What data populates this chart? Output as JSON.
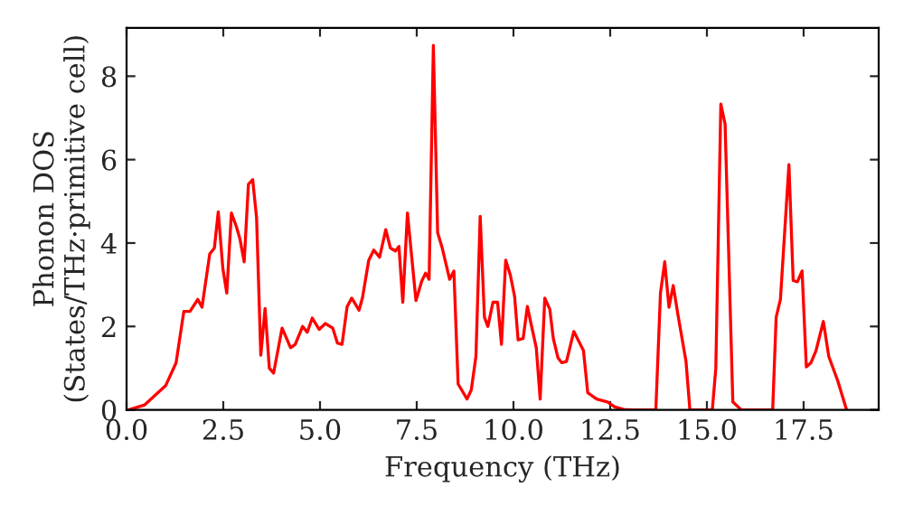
{
  "chart_data": {
    "type": "line",
    "xlabel": "Frequency (THz)",
    "ylabel": "Phonon DOS\n(States/THz·primitive cell)",
    "xlim": [
      0,
      19.44
    ],
    "ylim": [
      0,
      9.16
    ],
    "xticks": [
      {
        "value": 0,
        "label": "0.0"
      },
      {
        "value": 2.5,
        "label": "2.5"
      },
      {
        "value": 5,
        "label": "5.0"
      },
      {
        "value": 7.5,
        "label": "7.5"
      },
      {
        "value": 10,
        "label": "10.0"
      },
      {
        "value": 12.5,
        "label": "12.5"
      },
      {
        "value": 15,
        "label": "15.0"
      },
      {
        "value": 17.5,
        "label": "17.5"
      }
    ],
    "yticks": [
      0,
      2,
      4,
      6,
      8
    ],
    "grid": false,
    "marker": "none",
    "line_style": "solid",
    "series": [
      {
        "color": "#ff0000",
        "x": [
          0.05,
          0.47,
          1.01,
          1.28,
          1.48,
          1.64,
          1.84,
          1.95,
          2.15,
          2.27,
          2.37,
          2.49,
          2.59,
          2.71,
          2.84,
          2.93,
          3.04,
          3.15,
          3.26,
          3.36,
          3.47,
          3.58,
          3.69,
          3.8,
          4.02,
          4.24,
          4.36,
          4.55,
          4.67,
          4.8,
          4.98,
          5.14,
          5.33,
          5.45,
          5.57,
          5.7,
          5.82,
          6.01,
          6.1,
          6.26,
          6.39,
          6.54,
          6.7,
          6.82,
          6.95,
          7.04,
          7.14,
          7.26,
          7.48,
          7.63,
          7.73,
          7.82,
          7.93,
          8.04,
          8.16,
          8.35,
          8.46,
          8.57,
          8.8,
          8.91,
          9.03,
          9.14,
          9.25,
          9.34,
          9.47,
          9.59,
          9.69,
          9.8,
          9.92,
          10.03,
          10.12,
          10.25,
          10.36,
          10.47,
          10.59,
          10.69,
          10.81,
          10.94,
          11.03,
          11.15,
          11.25,
          11.37,
          11.56,
          11.81,
          11.92,
          12.15,
          12.43,
          12.62,
          12.85,
          13.08,
          13.68,
          13.8,
          13.91,
          14.02,
          14.13,
          14.25,
          14.46,
          14.56,
          15.14,
          15.23,
          15.36,
          15.47,
          15.67,
          15.89,
          16.7,
          16.79,
          16.9,
          17.12,
          17.23,
          17.34,
          17.46,
          17.57,
          17.69,
          17.82,
          18.01,
          18.15,
          18.38,
          18.61
        ],
        "values": [
          0,
          0.12,
          0.58,
          1.13,
          2.36,
          2.36,
          2.65,
          2.46,
          3.74,
          3.88,
          4.75,
          3.38,
          2.8,
          4.72,
          4.39,
          4.1,
          3.55,
          5.41,
          5.52,
          4.61,
          1.31,
          2.43,
          1.0,
          0.88,
          1.96,
          1.49,
          1.57,
          2.0,
          1.86,
          2.2,
          1.93,
          2.07,
          1.96,
          1.6,
          1.57,
          2.47,
          2.68,
          2.39,
          2.7,
          3.59,
          3.83,
          3.66,
          4.32,
          3.88,
          3.81,
          3.92,
          2.58,
          4.72,
          2.62,
          3.09,
          3.28,
          3.13,
          8.74,
          4.25,
          3.88,
          3.13,
          3.33,
          0.62,
          0.26,
          0.48,
          1.28,
          4.64,
          2.22,
          2.0,
          2.58,
          2.58,
          1.57,
          3.59,
          3.23,
          2.72,
          1.68,
          1.71,
          2.48,
          2.0,
          1.49,
          0.26,
          2.68,
          2.41,
          1.71,
          1.25,
          1.13,
          1.16,
          1.88,
          1.42,
          0.41,
          0.26,
          0.19,
          0.07,
          0.01,
          0,
          0,
          2.8,
          3.55,
          2.46,
          2.98,
          2.29,
          1.16,
          0,
          0,
          0.99,
          7.33,
          6.85,
          0.19,
          0,
          0,
          2.22,
          2.65,
          5.88,
          3.1,
          3.07,
          3.33,
          1.03,
          1.13,
          1.42,
          2.12,
          1.28,
          0.7,
          0
        ]
      }
    ]
  }
}
